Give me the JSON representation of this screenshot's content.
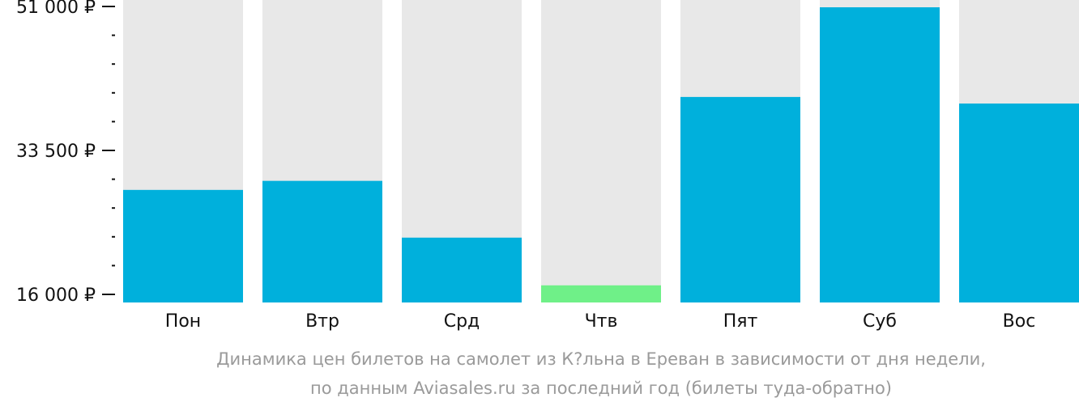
{
  "chart_data": {
    "type": "bar",
    "categories": [
      "Пон",
      "Втр",
      "Срд",
      "Чтв",
      "Пят",
      "Суб",
      "Вос"
    ],
    "values": [
      28700,
      29800,
      22900,
      17100,
      40000,
      50900,
      39200
    ],
    "highlight_index": 3,
    "ylim": [
      16000,
      51000
    ],
    "y_tick_labels": [
      "51 000 ₽",
      "33 500 ₽",
      "16 000 ₽"
    ],
    "y_tick_values": [
      51000,
      33500,
      16000
    ],
    "minor_ticks_between": 4,
    "colors": {
      "bar": "#00b0dc",
      "highlight": "#6ff088",
      "background_column": "#e8e8e8",
      "axis": "#111111"
    }
  },
  "caption": {
    "line1": "Динамика цен билетов на самолет из К?льна в Ереван в зависимости от дня недели,",
    "line2": "по данным Aviasales.ru за последний год (билеты туда-обратно)"
  }
}
